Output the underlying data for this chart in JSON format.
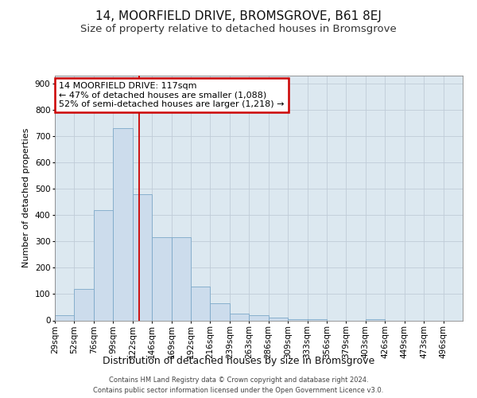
{
  "title": "14, MOORFIELD DRIVE, BROMSGROVE, B61 8EJ",
  "subtitle": "Size of property relative to detached houses in Bromsgrove",
  "xlabel": "Distribution of detached houses by size in Bromsgrove",
  "ylabel": "Number of detached properties",
  "bin_labels": [
    "29sqm",
    "52sqm",
    "76sqm",
    "99sqm",
    "122sqm",
    "146sqm",
    "169sqm",
    "192sqm",
    "216sqm",
    "239sqm",
    "263sqm",
    "286sqm",
    "309sqm",
    "333sqm",
    "356sqm",
    "379sqm",
    "403sqm",
    "426sqm",
    "449sqm",
    "473sqm",
    "496sqm"
  ],
  "bar_values": [
    20,
    120,
    420,
    730,
    480,
    315,
    315,
    130,
    65,
    25,
    20,
    10,
    5,
    5,
    0,
    0,
    5,
    0,
    0,
    0,
    0
  ],
  "bar_color": "#ccdcec",
  "bar_edge_color": "#7ca8c8",
  "vline_x": 4.33,
  "vline_color": "#cc0000",
  "annotation_text": "14 MOORFIELD DRIVE: 117sqm\n← 47% of detached houses are smaller (1,088)\n52% of semi-detached houses are larger (1,218) →",
  "annotation_box_facecolor": "#ffffff",
  "annotation_box_edgecolor": "#cc0000",
  "ylim": [
    0,
    930
  ],
  "yticks": [
    0,
    100,
    200,
    300,
    400,
    500,
    600,
    700,
    800,
    900
  ],
  "grid_color": "#c0ccd8",
  "plot_bg_color": "#dce8f0",
  "footer": "Contains HM Land Registry data © Crown copyright and database right 2024.\nContains public sector information licensed under the Open Government Licence v3.0.",
  "title_fontsize": 11,
  "subtitle_fontsize": 9.5,
  "xlabel_fontsize": 9,
  "ylabel_fontsize": 8,
  "tick_fontsize": 7.5,
  "annotation_fontsize": 8,
  "footer_fontsize": 6
}
